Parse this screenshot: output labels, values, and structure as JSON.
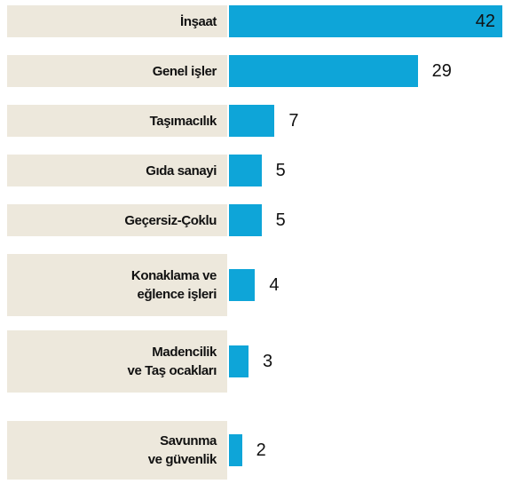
{
  "chart_data": {
    "type": "bar",
    "orientation": "horizontal",
    "color": "#0ea5d8",
    "categories": [
      "İnşaat",
      "Genel işler",
      "Taşımacılık",
      "Gıda sanayi",
      "Geçersiz-Çoklu",
      "Konaklama ve\neğlence işleri",
      "Madencilik\nve Taş ocakları",
      "Savunma\nve güvenlik"
    ],
    "values": [
      42,
      29,
      7,
      5,
      5,
      4,
      3,
      2
    ]
  }
}
